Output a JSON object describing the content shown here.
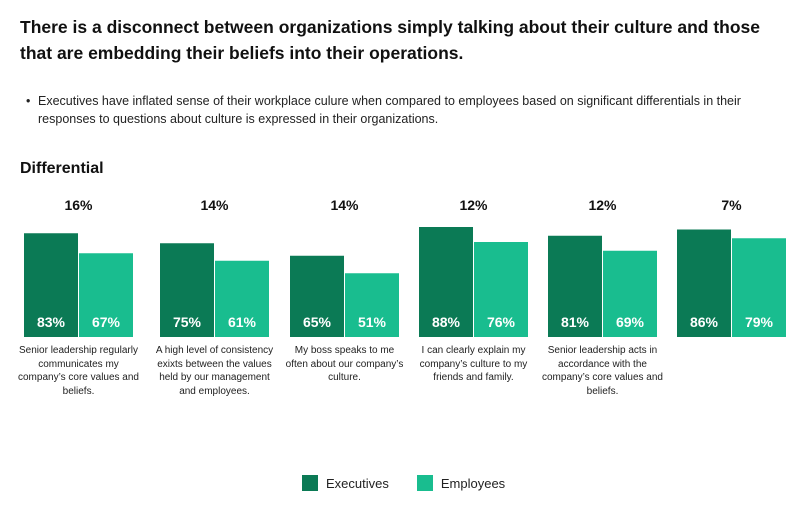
{
  "title": "There is a disconnect between organizations simply talking about  their culture and those that are embedding their beliefs into their operations.",
  "bullet_text": "Executives have inflated sense of their workplace culure when compared to employees based on significant differentials in their responses to questions about culture is expressed in their organizations.",
  "differential_label": "Differential",
  "colors": {
    "executives": "#0b7a55",
    "employees": "#19bd8f"
  },
  "chart_data": {
    "type": "bar",
    "categories": [
      "Senior leadership regularly communicates my company’s core values and beliefs.",
      "A high level of consistency exixts between the values held by our management and employees.",
      "My boss speaks to me often about our company’s culture.",
      "I can clearly explain my company’s culture to my friends and family.",
      "Senior leadership acts in accordance with the company’s core values and beliefs.",
      ""
    ],
    "series": [
      {
        "name": "Executives",
        "values": [
          83,
          75,
          65,
          88,
          81,
          86
        ],
        "labels": [
          "83%",
          "75%",
          "65%",
          "88%",
          "81%",
          "86%"
        ]
      },
      {
        "name": "Employees",
        "values": [
          67,
          61,
          51,
          76,
          69,
          79
        ],
        "labels": [
          "67%",
          "61%",
          "51%",
          "76%",
          "69%",
          "79%"
        ]
      }
    ],
    "differentials": [
      "16%",
      "14%",
      "14%",
      "12%",
      "12%",
      "7%"
    ],
    "legend": [
      "Executives",
      "Employees"
    ],
    "legend_position": "bottom-center",
    "grid": false
  }
}
